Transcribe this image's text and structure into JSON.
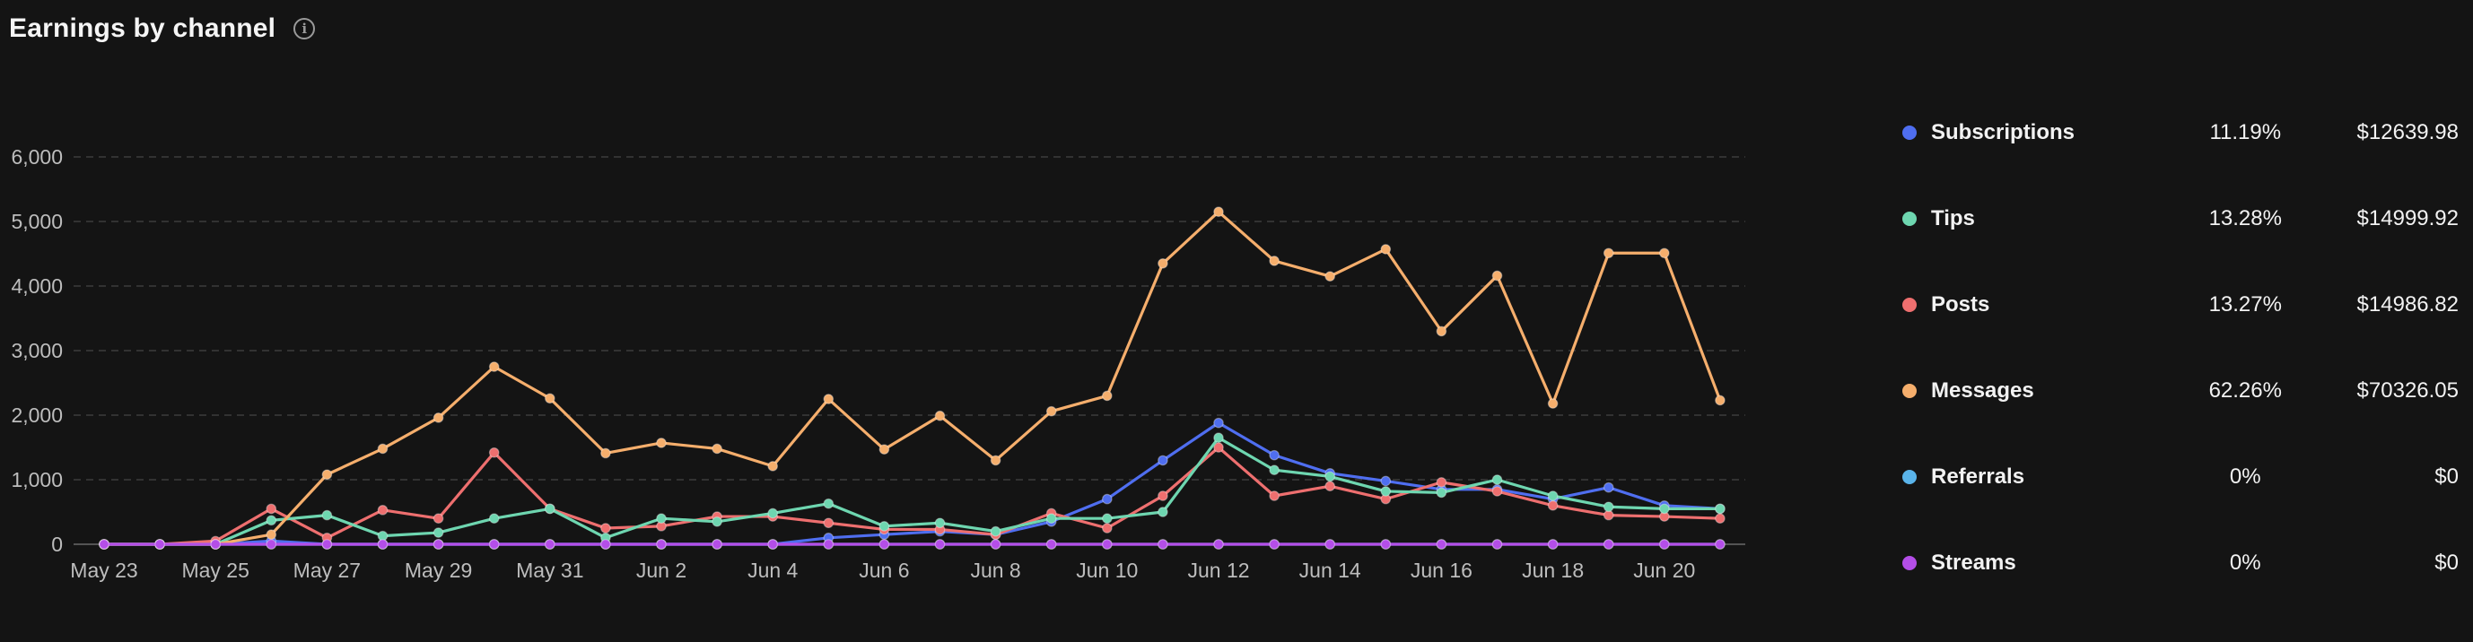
{
  "header": {
    "title": "Earnings by channel",
    "info_icon": "info-icon"
  },
  "colors": {
    "background": "#141414",
    "grid": "#3c3c3c",
    "axis": "#6a6a6a"
  },
  "legend": {
    "items": [
      {
        "name": "Subscriptions",
        "percent": "11.19%",
        "amount": "$12639.98",
        "color": "#4f6ef0"
      },
      {
        "name": "Tips",
        "percent": "13.28%",
        "amount": "$14999.92",
        "color": "#6ed6b0"
      },
      {
        "name": "Posts",
        "percent": "13.27%",
        "amount": "$14986.82",
        "color": "#ee6f6f"
      },
      {
        "name": "Messages",
        "percent": "62.26%",
        "amount": "$70326.05",
        "color": "#f5ae6c"
      },
      {
        "name": "Referrals",
        "percent": "0%",
        "amount": "$0",
        "color": "#5ab4ea"
      },
      {
        "name": "Streams",
        "percent": "0%",
        "amount": "$0",
        "color": "#b44ee8"
      }
    ]
  },
  "chart_data": {
    "type": "line",
    "title": "Earnings by channel",
    "xlabel": "",
    "ylabel": "",
    "ylim": [
      0,
      6000
    ],
    "y_ticks": [
      "0",
      "1,000",
      "2,000",
      "3,000",
      "4,000",
      "5,000",
      "6,000"
    ],
    "y_tick_values": [
      0,
      1000,
      2000,
      3000,
      4000,
      5000,
      6000
    ],
    "grid": "horizontal-dashed",
    "legend_placement": "right",
    "x": [
      "May 23",
      "May 24",
      "May 25",
      "May 26",
      "May 27",
      "May 28",
      "May 29",
      "May 30",
      "May 31",
      "Jun 1",
      "Jun 2",
      "Jun 3",
      "Jun 4",
      "Jun 5",
      "Jun 6",
      "Jun 7",
      "Jun 8",
      "Jun 9",
      "Jun 10",
      "Jun 11",
      "Jun 12",
      "Jun 13",
      "Jun 14",
      "Jun 15",
      "Jun 16",
      "Jun 17",
      "Jun 18",
      "Jun 19",
      "Jun 20",
      "Jun 21"
    ],
    "x_tick_labels": [
      "May 23",
      "May 25",
      "May 27",
      "May 29",
      "May 31",
      "Jun 2",
      "Jun 4",
      "Jun 6",
      "Jun 8",
      "Jun 10",
      "Jun 12",
      "Jun 14",
      "Jun 16",
      "Jun 18",
      "Jun 20"
    ],
    "series": [
      {
        "name": "Subscriptions",
        "color": "#4f6ef0",
        "values": [
          0,
          0,
          0,
          50,
          0,
          0,
          0,
          0,
          0,
          0,
          0,
          0,
          0,
          100,
          150,
          200,
          150,
          350,
          700,
          1300,
          1880,
          1380,
          1100,
          980,
          850,
          850,
          700,
          880,
          600,
          550
        ]
      },
      {
        "name": "Tips",
        "color": "#6ed6b0",
        "values": [
          0,
          0,
          0,
          370,
          450,
          130,
          180,
          400,
          550,
          100,
          400,
          350,
          480,
          630,
          280,
          330,
          200,
          400,
          400,
          500,
          1650,
          1150,
          1050,
          820,
          800,
          1000,
          750,
          580,
          550,
          550
        ]
      },
      {
        "name": "Posts",
        "color": "#ee6f6f",
        "values": [
          0,
          0,
          50,
          550,
          100,
          530,
          400,
          1420,
          550,
          250,
          280,
          430,
          430,
          330,
          230,
          230,
          150,
          480,
          250,
          750,
          1500,
          750,
          900,
          700,
          960,
          820,
          600,
          450,
          430,
          400
        ]
      },
      {
        "name": "Messages",
        "color": "#f5ae6c",
        "values": [
          0,
          0,
          0,
          150,
          1080,
          1480,
          1960,
          2750,
          2260,
          1410,
          1570,
          1480,
          1210,
          2250,
          1470,
          1990,
          1300,
          2060,
          2300,
          4350,
          5150,
          4390,
          4150,
          4570,
          3300,
          4160,
          2180,
          4510,
          4510,
          2230
        ]
      },
      {
        "name": "Referrals",
        "color": "#5ab4ea",
        "values": [
          0,
          0,
          0,
          0,
          0,
          0,
          0,
          0,
          0,
          0,
          0,
          0,
          0,
          0,
          0,
          0,
          0,
          0,
          0,
          0,
          0,
          0,
          0,
          0,
          0,
          0,
          0,
          0,
          0,
          0
        ]
      },
      {
        "name": "Streams",
        "color": "#b44ee8",
        "values": [
          0,
          0,
          0,
          0,
          0,
          0,
          0,
          0,
          0,
          0,
          0,
          0,
          0,
          0,
          0,
          0,
          0,
          0,
          0,
          0,
          0,
          0,
          0,
          0,
          0,
          0,
          0,
          0,
          0,
          0
        ]
      }
    ]
  }
}
